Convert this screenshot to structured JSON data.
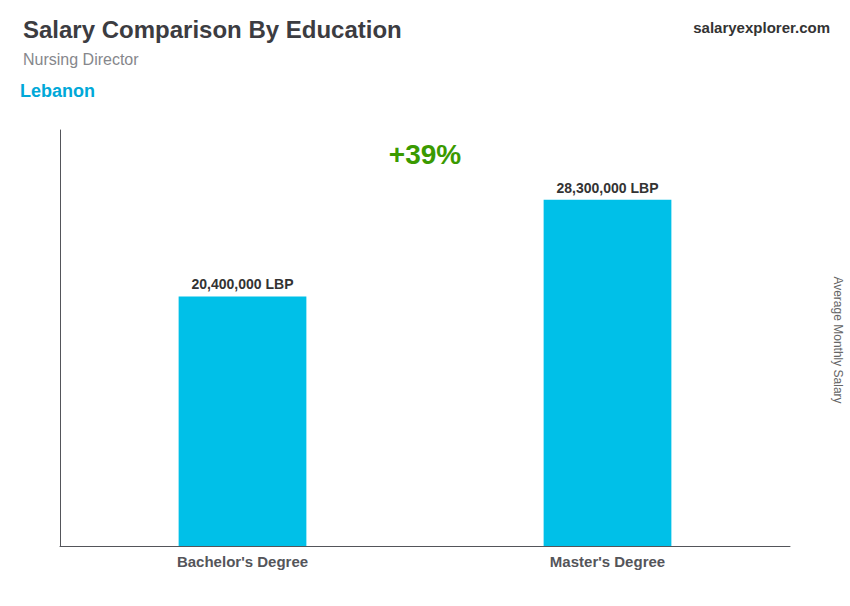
{
  "chart_data": {
    "type": "bar",
    "title": "Salary Comparison By Education",
    "subtitle": "Nursing Director",
    "categories": [
      "Bachelor's Degree",
      "Master's Degree"
    ],
    "values": [
      20400000,
      28300000
    ],
    "value_labels": [
      "20,400,000 LBP",
      "28,300,000 LBP"
    ],
    "data_labels": true,
    "color": "#00c0e8",
    "ylabel": "Average Monthly Salary",
    "ylim": [
      0,
      34000000
    ],
    "tick_labels": "x",
    "grid": false,
    "annotations": [
      "Lebanon",
      "salaryexplorer.com",
      "+39%"
    ]
  }
}
